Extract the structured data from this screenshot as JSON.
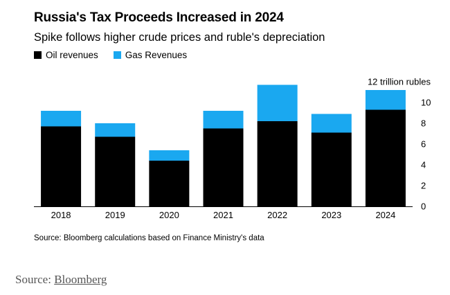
{
  "title": "Russia's Tax Proceeds Increased in 2024",
  "subtitle": "Spike follows higher crude prices and ruble's depreciation",
  "legend": [
    {
      "label": "Oil revenues",
      "color": "#000000"
    },
    {
      "label": "Gas Revenues",
      "color": "#1aa8f0"
    }
  ],
  "source_note": "Source: Bloomberg calculations based on Finance Ministry's data",
  "credit": {
    "prefix": "Source:",
    "link": "Bloomberg"
  },
  "chart_data": {
    "type": "bar",
    "stacked": true,
    "categories": [
      "2018",
      "2019",
      "2020",
      "2021",
      "2022",
      "2023",
      "2024"
    ],
    "series": [
      {
        "name": "Oil revenues",
        "color": "#000000",
        "values": [
          7.7,
          6.7,
          4.4,
          7.5,
          8.2,
          7.1,
          9.3
        ]
      },
      {
        "name": "Gas Revenues",
        "color": "#1aa8f0",
        "values": [
          1.5,
          1.3,
          1.0,
          1.7,
          3.5,
          1.8,
          1.9
        ]
      }
    ],
    "y_axis": {
      "label": "12 trillion rubles",
      "ticks": [
        0,
        2,
        4,
        6,
        8,
        10
      ],
      "max_label": "12",
      "unit": "trillion rubles",
      "position": "right"
    },
    "ylim": [
      0,
      12
    ],
    "grid": false
  }
}
